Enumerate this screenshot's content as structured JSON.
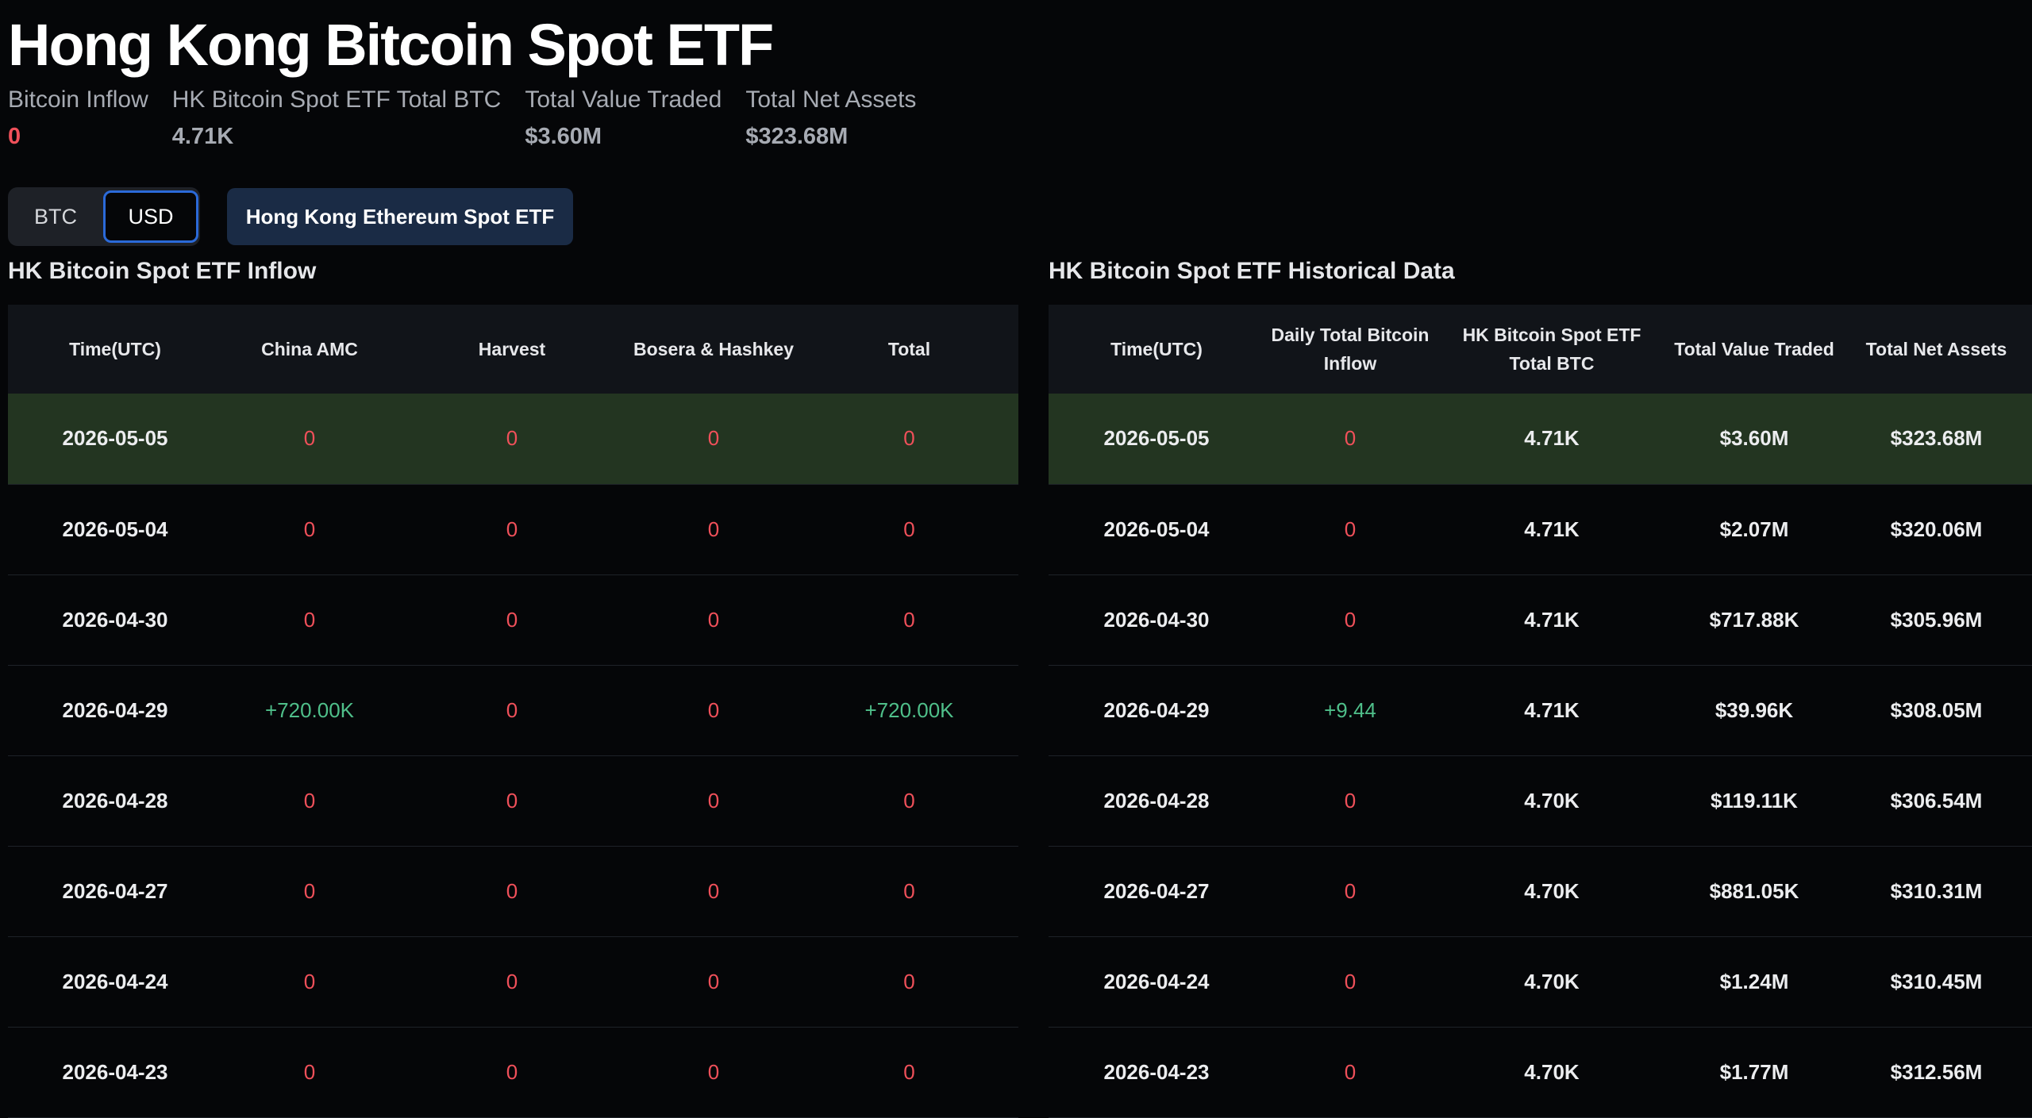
{
  "title": "Hong Kong Bitcoin Spot ETF",
  "stats": [
    {
      "label": "Bitcoin Inflow",
      "value": "0",
      "tone": "neg"
    },
    {
      "label": "HK Bitcoin Spot ETF Total BTC",
      "value": "4.71K",
      "tone": "neutral"
    },
    {
      "label": "Total Value Traded",
      "value": "$3.60M",
      "tone": "neutral"
    },
    {
      "label": "Total Net Assets",
      "value": "$323.68M",
      "tone": "neutral"
    }
  ],
  "toggle": {
    "btc_label": "BTC",
    "usd_label": "USD",
    "selected": "USD"
  },
  "eth_button_label": "Hong Kong Ethereum Spot ETF",
  "colors": {
    "negative": "#f0505a",
    "positive": "#4fbf8a",
    "highlight_row": "#233521",
    "accent": "#2b6ad9"
  },
  "inflow": {
    "title": "HK Bitcoin Spot ETF Inflow",
    "headers": [
      "Time(UTC)",
      "China AMC",
      "Harvest",
      "Bosera & Hashkey",
      "Total"
    ],
    "rows": [
      [
        "2026-05-05",
        "0",
        "0",
        "0",
        "0"
      ],
      [
        "2026-05-04",
        "0",
        "0",
        "0",
        "0"
      ],
      [
        "2026-04-30",
        "0",
        "0",
        "0",
        "0"
      ],
      [
        "2026-04-29",
        "+720.00K",
        "0",
        "0",
        "+720.00K"
      ],
      [
        "2026-04-28",
        "0",
        "0",
        "0",
        "0"
      ],
      [
        "2026-04-27",
        "0",
        "0",
        "0",
        "0"
      ],
      [
        "2026-04-24",
        "0",
        "0",
        "0",
        "0"
      ],
      [
        "2026-04-23",
        "0",
        "0",
        "0",
        "0"
      ]
    ]
  },
  "historical": {
    "title": "HK Bitcoin Spot ETF Historical Data",
    "headers": [
      "Time(UTC)",
      "Daily Total Bitcoin\nInflow",
      "HK Bitcoin Spot ETF\nTotal BTC",
      "Total Value Traded",
      "Total Net Assets"
    ],
    "rows": [
      [
        "2026-05-05",
        "0",
        "4.71K",
        "$3.60M",
        "$323.68M"
      ],
      [
        "2026-05-04",
        "0",
        "4.71K",
        "$2.07M",
        "$320.06M"
      ],
      [
        "2026-04-30",
        "0",
        "4.71K",
        "$717.88K",
        "$305.96M"
      ],
      [
        "2026-04-29",
        "+9.44",
        "4.71K",
        "$39.96K",
        "$308.05M"
      ],
      [
        "2026-04-28",
        "0",
        "4.70K",
        "$119.11K",
        "$306.54M"
      ],
      [
        "2026-04-27",
        "0",
        "4.70K",
        "$881.05K",
        "$310.31M"
      ],
      [
        "2026-04-24",
        "0",
        "4.70K",
        "$1.24M",
        "$310.45M"
      ],
      [
        "2026-04-23",
        "0",
        "4.70K",
        "$1.77M",
        "$312.56M"
      ]
    ]
  }
}
